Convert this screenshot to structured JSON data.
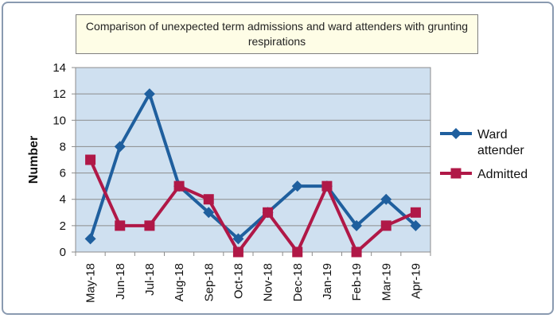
{
  "chart_data": {
    "type": "line",
    "title": "Comparison of unexpected term admissions and ward attenders with grunting respirations",
    "xlabel": "",
    "ylabel": "Number",
    "ylim": [
      0,
      14
    ],
    "yticks": [
      0,
      2,
      4,
      6,
      8,
      10,
      12,
      14
    ],
    "grid": true,
    "legend_position": "right",
    "categories": [
      "May-18",
      "Jun-18",
      "Jul-18",
      "Aug-18",
      "Sep-18",
      "Oct-18",
      "Nov-18",
      "Dec-18",
      "Jan-19",
      "Feb-19",
      "Mar-19",
      "Apr-19"
    ],
    "series": [
      {
        "name": "Ward attender",
        "legend_lines": [
          "Ward",
          "attender"
        ],
        "color": "#1f5f9e",
        "marker": "diamond",
        "values": [
          1,
          8,
          12,
          5,
          3,
          1,
          3,
          5,
          5,
          2,
          4,
          2
        ]
      },
      {
        "name": "Admitted",
        "legend_lines": [
          "Admitted"
        ],
        "color": "#b01847",
        "marker": "square",
        "values": [
          7,
          2,
          2,
          5,
          4,
          0,
          3,
          0,
          5,
          0,
          2,
          3
        ]
      }
    ],
    "plot_background": "#cfe0f0",
    "title_background": "#fefde6"
  }
}
